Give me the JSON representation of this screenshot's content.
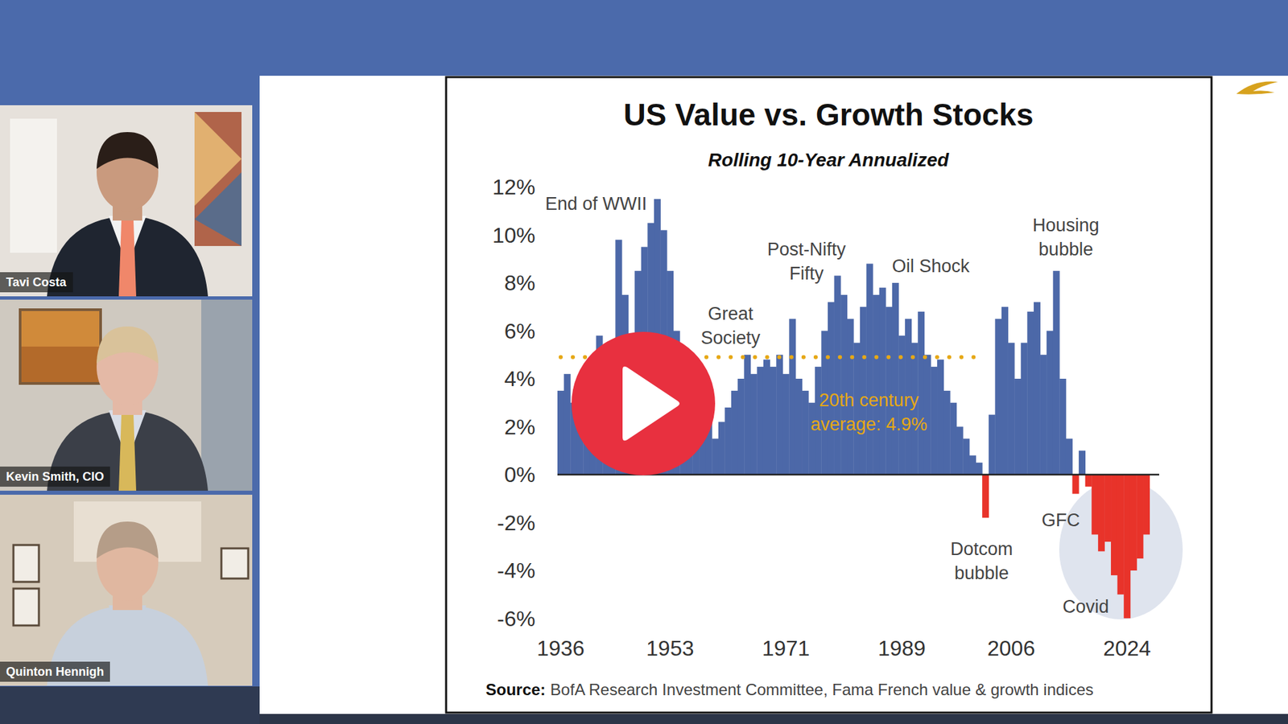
{
  "chart_data": {
    "type": "bar",
    "title": "US Value vs. Growth Stocks",
    "subtitle": "Rolling 10-Year Annualized",
    "x": [
      1936,
      1937,
      1938,
      1939,
      1940,
      1941,
      1942,
      1943,
      1944,
      1945,
      1946,
      1947,
      1948,
      1949,
      1950,
      1951,
      1952,
      1953,
      1954,
      1955,
      1956,
      1957,
      1958,
      1959,
      1960,
      1961,
      1962,
      1963,
      1964,
      1965,
      1966,
      1967,
      1968,
      1969,
      1970,
      1971,
      1972,
      1973,
      1974,
      1975,
      1976,
      1977,
      1978,
      1979,
      1980,
      1981,
      1982,
      1983,
      1984,
      1985,
      1986,
      1987,
      1988,
      1989,
      1990,
      1991,
      1992,
      1993,
      1994,
      1995,
      1996,
      1997,
      1998,
      1999,
      2000,
      2001,
      2002,
      2003,
      2004,
      2005,
      2006,
      2007,
      2008,
      2009,
      2010,
      2011,
      2012,
      2013,
      2014,
      2015,
      2016,
      2017,
      2018,
      2019,
      2020,
      2021,
      2022,
      2023,
      2024,
      2025,
      2026,
      2027
    ],
    "values": [
      3.5,
      4.2,
      3.0,
      2.4,
      3.2,
      2.0,
      5.8,
      1.5,
      4.5,
      9.8,
      7.5,
      5.5,
      8.5,
      9.5,
      10.5,
      11.5,
      10.2,
      8.5,
      6.0,
      3.5,
      3.0,
      4.0,
      2.5,
      3.0,
      1.5,
      2.2,
      2.8,
      3.5,
      4.0,
      5.0,
      4.2,
      4.5,
      4.8,
      4.5,
      5.0,
      4.2,
      6.5,
      4.0,
      3.5,
      3.0,
      4.5,
      6.0,
      7.2,
      8.3,
      7.5,
      6.5,
      5.5,
      7.0,
      8.8,
      7.5,
      7.8,
      7.0,
      8.0,
      5.8,
      6.5,
      5.5,
      6.8,
      5.0,
      4.5,
      4.8,
      3.5,
      3.0,
      2.0,
      1.5,
      0.8,
      0.5,
      -1.8,
      2.5,
      6.5,
      7.0,
      5.5,
      4.0,
      5.5,
      6.8,
      7.2,
      5.0,
      6.0,
      8.5,
      4.0,
      1.5,
      -0.8,
      1.0,
      -0.5,
      -2.5,
      -3.2,
      -2.8,
      -4.2,
      -5.0,
      -6.0,
      -4.0,
      -3.5,
      -2.5
    ],
    "colors": [
      "#4c68a8",
      "#4c68a8",
      "#4c68a8",
      "#4c68a8",
      "#4c68a8",
      "#4c68a8",
      "#4c68a8",
      "#4c68a8",
      "#4c68a8",
      "#4c68a8",
      "#4c68a8",
      "#4c68a8",
      "#4c68a8",
      "#4c68a8",
      "#4c68a8",
      "#4c68a8",
      "#4c68a8",
      "#4c68a8",
      "#4c68a8",
      "#4c68a8",
      "#4c68a8",
      "#4c68a8",
      "#4c68a8",
      "#4c68a8",
      "#4c68a8",
      "#4c68a8",
      "#4c68a8",
      "#4c68a8",
      "#4c68a8",
      "#4c68a8",
      "#4c68a8",
      "#4c68a8",
      "#4c68a8",
      "#4c68a8",
      "#4c68a8",
      "#4c68a8",
      "#4c68a8",
      "#4c68a8",
      "#4c68a8",
      "#4c68a8",
      "#4c68a8",
      "#4c68a8",
      "#4c68a8",
      "#4c68a8",
      "#4c68a8",
      "#4c68a8",
      "#4c68a8",
      "#4c68a8",
      "#4c68a8",
      "#4c68a8",
      "#4c68a8",
      "#4c68a8",
      "#4c68a8",
      "#4c68a8",
      "#4c68a8",
      "#4c68a8",
      "#4c68a8",
      "#4c68a8",
      "#4c68a8",
      "#4c68a8",
      "#4c68a8",
      "#4c68a8",
      "#4c68a8",
      "#4c68a8",
      "#4c68a8",
      "#4c68a8",
      "#e8332a",
      "#4c68a8",
      "#4c68a8",
      "#4c68a8",
      "#4c68a8",
      "#4c68a8",
      "#4c68a8",
      "#4c68a8",
      "#4c68a8",
      "#4c68a8",
      "#4c68a8",
      "#4c68a8",
      "#4c68a8",
      "#4c68a8",
      "#e8332a",
      "#4c68a8",
      "#e8332a",
      "#e8332a",
      "#e8332a",
      "#e8332a",
      "#e8332a",
      "#e8332a",
      "#e8332a",
      "#e8332a",
      "#e8332a",
      "#e8332a"
    ],
    "xlim": [
      1935.5,
      2029
    ],
    "ylim": [
      -6,
      12
    ],
    "xticks": [
      1936,
      1953,
      1971,
      1989,
      2006,
      2024
    ],
    "yticks": [
      {
        "value": 12,
        "label": "12%"
      },
      {
        "value": 10,
        "label": "10%"
      },
      {
        "value": 8,
        "label": "8%"
      },
      {
        "value": 6,
        "label": "6%"
      },
      {
        "value": 4,
        "label": "4%"
      },
      {
        "value": 2,
        "label": "2%"
      },
      {
        "value": 0,
        "label": "0%"
      },
      {
        "value": -2,
        "label": "-2%"
      },
      {
        "value": -4,
        "label": "-4%"
      },
      {
        "value": -6,
        "label": "-6%"
      }
    ],
    "grid": false,
    "reference_line": {
      "value": 4.9,
      "x": [
        1936,
        2002
      ],
      "color": "#e6a817",
      "label": {
        "text": [
          "20th century",
          "average: 4.9%"
        ],
        "x": 1983.9,
        "y": 2.6
      }
    },
    "annotations": [
      {
        "text": [
          "End of WWII"
        ],
        "x": 1941.5,
        "y": 11.3
      },
      {
        "text": [
          "Great",
          "Society"
        ],
        "x": 1962.4,
        "y": 6.2
      },
      {
        "text": [
          "Post-Nifty",
          "Fifty"
        ],
        "x": 1974.2,
        "y": 8.9
      },
      {
        "text": [
          "Oil Shock"
        ],
        "x": 1993.5,
        "y": 8.7
      },
      {
        "text": [
          "Housing",
          "bubble"
        ],
        "x": 2014.5,
        "y": 9.9
      },
      {
        "text": [
          "Dotcom",
          "bubble"
        ],
        "x": 2001.4,
        "y": -3.6
      },
      {
        "text": [
          "GFC"
        ],
        "x": 2013.7,
        "y": -1.9
      },
      {
        "text": [
          "Covid"
        ],
        "x": 2017.6,
        "y": -5.5
      }
    ],
    "source_label": "Source:",
    "source": "BofA Research Investment Committee, Fama French value & growth indices"
  },
  "participants": [
    "Tavi Costa",
    "Kevin Smith, CIO",
    "Quinton Hennigh"
  ]
}
